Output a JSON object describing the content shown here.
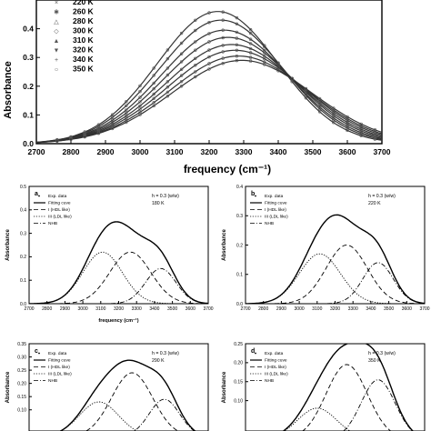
{
  "figure": {
    "chart_data": [
      {
        "id": "top",
        "type": "line",
        "xlabel": "frequency",
        "xlabel_unit": "(cm⁻¹)",
        "ylabel": "Absorbance",
        "xlim": [
          2700,
          3700
        ],
        "ylim": [
          0,
          0.5
        ],
        "x_ticks": [
          "2700",
          "2800",
          "2900",
          "3000",
          "3100",
          "3200",
          "3300",
          "3400",
          "3500",
          "3600",
          "3700"
        ],
        "y_ticks": [
          "0.0",
          "0.1",
          "0.2",
          "0.3",
          "0.4"
        ],
        "legend": [
          {
            "label": "220 K",
            "marker": "x"
          },
          {
            "label": "260 K",
            "marker": "star"
          },
          {
            "label": "280 K",
            "marker": "triangle-open"
          },
          {
            "label": "300 K",
            "marker": "diamond"
          },
          {
            "label": "310 K",
            "marker": "triangle"
          },
          {
            "label": "320 K",
            "marker": "triangle-down"
          },
          {
            "label": "340 K",
            "marker": "plus"
          },
          {
            "label": "350 K",
            "marker": "circle-open"
          }
        ],
        "series": [
          {
            "label": "220 K",
            "peak_x": 3225,
            "peak_y": 0.46
          },
          {
            "label": "260 K",
            "peak_x": 3235,
            "peak_y": 0.43
          },
          {
            "label": "280 K",
            "peak_x": 3245,
            "peak_y": 0.395
          },
          {
            "label": "300 K",
            "peak_x": 3255,
            "peak_y": 0.37
          },
          {
            "label": "310 K",
            "peak_x": 3265,
            "peak_y": 0.345
          },
          {
            "label": "320 K",
            "peak_x": 3275,
            "peak_y": 0.325
          },
          {
            "label": "340 K",
            "peak_x": 3285,
            "peak_y": 0.305
          },
          {
            "label": "350 K",
            "peak_x": 3295,
            "peak_y": 0.29
          }
        ]
      },
      {
        "id": "a",
        "type": "line",
        "panel_label": "a",
        "annotation": [
          "h = 0.3 (w/w)",
          "180 K"
        ],
        "xlabel": "frequency (cm⁻¹)",
        "ylabel": "Absorbance",
        "xlim": [
          2700,
          3700
        ],
        "ylim": [
          0,
          0.5
        ],
        "x_ticks": [
          "2700",
          "2800",
          "2900",
          "3000",
          "3100",
          "3200",
          "3300",
          "3400",
          "3500",
          "3600",
          "3700"
        ],
        "y_ticks": [
          "0.0",
          "0.1",
          "0.2",
          "0.3",
          "0.4",
          "0.5"
        ],
        "legend": [
          "Exp. data",
          "Fitting cuve",
          "I (HDL like)",
          "III (LDL like)",
          "NHB"
        ],
        "components": [
          {
            "label": "I (HDL like)",
            "center": 3265,
            "amp": 0.22,
            "width": 115,
            "style": "dash"
          },
          {
            "label": "III (LDL like)",
            "center": 3110,
            "amp": 0.22,
            "width": 110,
            "style": "dot"
          },
          {
            "label": "NHB",
            "center": 3435,
            "amp": 0.15,
            "width": 85,
            "style": "dashdot"
          }
        ],
        "fit": {
          "label": "Fitting cuve",
          "style": "solid"
        }
      },
      {
        "id": "b",
        "type": "line",
        "panel_label": "b",
        "annotation": [
          "h = 0.3 (w/w)",
          "220 K"
        ],
        "xlabel": "",
        "ylabel": "Absorbance",
        "xlim": [
          2700,
          3700
        ],
        "ylim": [
          0,
          0.4
        ],
        "x_ticks": [
          "2700",
          "2800",
          "2900",
          "3000",
          "3100",
          "3200",
          "3300",
          "3400",
          "3500",
          "3600",
          "3700"
        ],
        "y_ticks": [
          "0.0",
          "0.1",
          "0.2",
          "0.3",
          "0.4"
        ],
        "legend": [
          "Exp. data",
          "Fitting cuve",
          "I (HDL like)",
          "III (LDL like)",
          "NHB"
        ],
        "components": [
          {
            "label": "I (HDL like)",
            "center": 3265,
            "amp": 0.2,
            "width": 115,
            "style": "dash"
          },
          {
            "label": "III (LDL like)",
            "center": 3115,
            "amp": 0.17,
            "width": 115,
            "style": "dot"
          },
          {
            "label": "NHB",
            "center": 3440,
            "amp": 0.14,
            "width": 85,
            "style": "dashdot"
          }
        ],
        "fit": {
          "label": "Fitting cuve",
          "style": "solid"
        }
      },
      {
        "id": "c",
        "type": "line",
        "panel_label": "c",
        "annotation": [
          "h = 0.3 (w/w)",
          "290 K"
        ],
        "xlabel": "",
        "ylabel": "Absorbance",
        "xlim": [
          2700,
          3700
        ],
        "ylim": [
          0.02,
          0.35
        ],
        "x_ticks": [],
        "y_ticks": [
          "0.10",
          "0.15",
          "0.20",
          "0.25",
          "0.30",
          "0.35"
        ],
        "y_tick_values": [
          0.1,
          0.15,
          0.2,
          0.25,
          0.3,
          0.35
        ],
        "legend": [
          "Exp. data",
          "Fitting cuve",
          "I (HDL like)",
          "III (LDL like)",
          "NHB"
        ],
        "components": [
          {
            "label": "I (HDL like)",
            "center": 3275,
            "amp": 0.24,
            "width": 115,
            "style": "dash"
          },
          {
            "label": "III (LDL like)",
            "center": 3090,
            "amp": 0.13,
            "width": 110,
            "style": "dot"
          },
          {
            "label": "NHB",
            "center": 3455,
            "amp": 0.14,
            "width": 85,
            "style": "dashdot"
          }
        ],
        "fit": {
          "label": "Fitting cuve",
          "style": "solid"
        }
      },
      {
        "id": "d",
        "type": "line",
        "panel_label": "d",
        "annotation": [
          "h = 0.3 (w/w)",
          "350 K"
        ],
        "xlabel": "",
        "ylabel": "Absorbance",
        "xlim": [
          2700,
          3700
        ],
        "ylim": [
          0.02,
          0.25
        ],
        "x_ticks": [],
        "y_ticks": [
          "0.10",
          "0.15",
          "0.20",
          "0.25"
        ],
        "y_tick_values": [
          0.1,
          0.15,
          0.2,
          0.25
        ],
        "legend": [
          "Exp. data",
          "Fitting cuve",
          "I (HDL like)",
          "III (LDL like)",
          "NHB"
        ],
        "components": [
          {
            "label": "I (HDL like)",
            "center": 3265,
            "amp": 0.195,
            "width": 115,
            "style": "dash"
          },
          {
            "label": "III (LDL like)",
            "center": 3100,
            "amp": 0.08,
            "width": 110,
            "style": "dot"
          },
          {
            "label": "NHB",
            "center": 3440,
            "amp": 0.155,
            "width": 95,
            "style": "dashdot"
          }
        ],
        "fit": {
          "label": "Fitting cuve",
          "style": "solid"
        }
      }
    ]
  }
}
